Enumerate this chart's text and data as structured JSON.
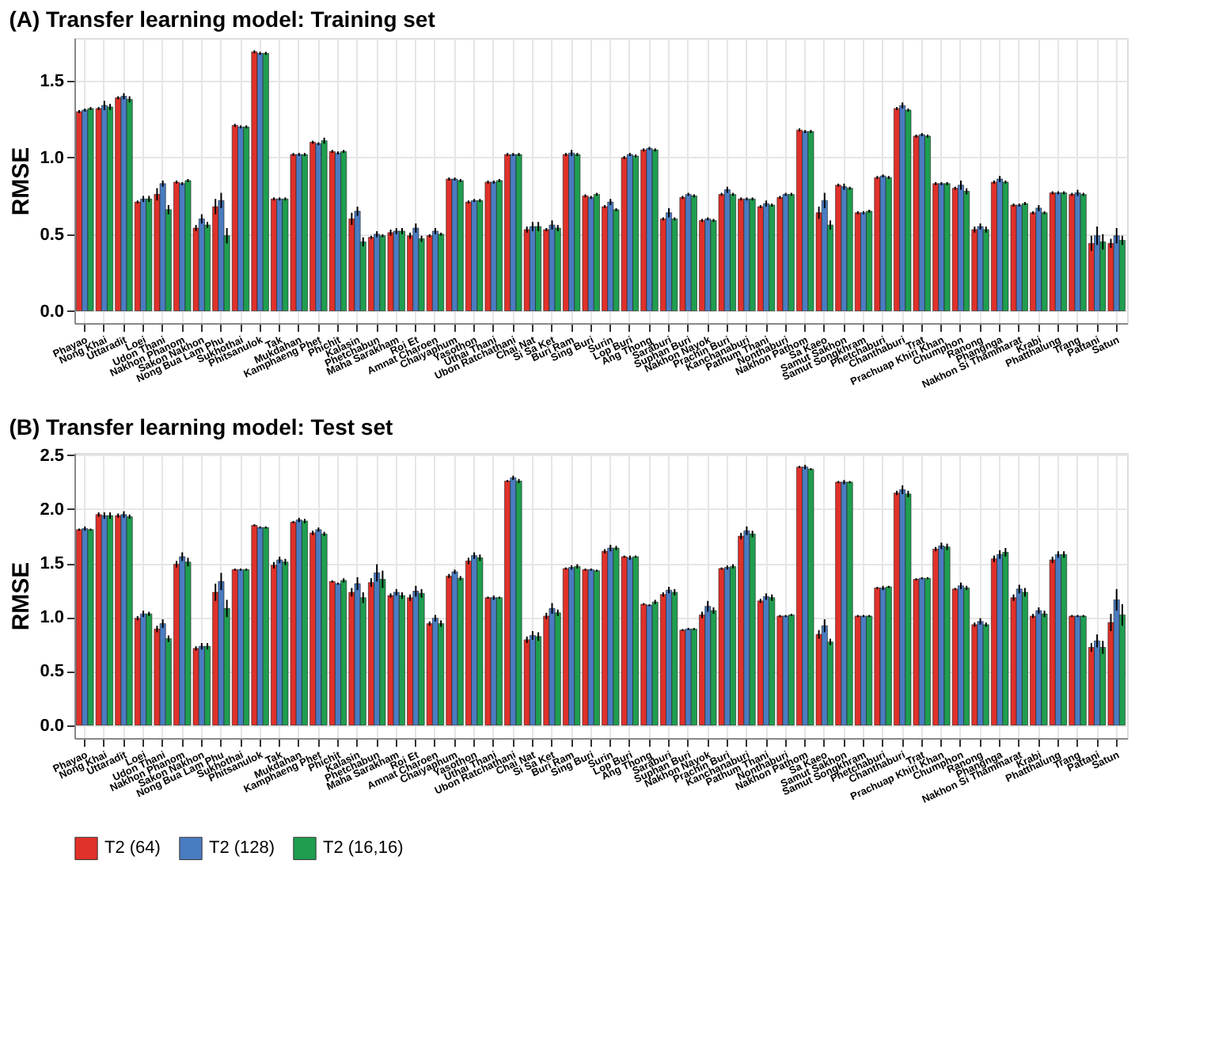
{
  "chart_data": [
    {
      "type": "bar",
      "title": "(A) Transfer learning model: Training set",
      "ylabel": "RMSE",
      "grid": true,
      "categories": [
        "Phayao",
        "Nong Khai",
        "Uttaradit",
        "Loei",
        "Udon Thani",
        "Nakhon Phanom",
        "Sakon Nakhon",
        "Nong Bua Lam Phu",
        "Sukhothai",
        "Phitsanulok",
        "Tak",
        "Mukdahan",
        "Kamphaeng Phet",
        "Phichit",
        "Kalasin",
        "Phetchabun",
        "Maha Sarakham",
        "Roi Et",
        "Amnat Charoen",
        "Chaiyaphum",
        "Yasothon",
        "Uthai Thani",
        "Ubon Ratchathani",
        "Chai Nat",
        "Si Sa Ket",
        "Buri Ram",
        "Sing Buri",
        "Surin",
        "Lop Buri",
        "Ang Thong",
        "Saraburi",
        "Suphan Buri",
        "Nakhon Nayok",
        "Prachin Buri",
        "Kanchanaburi",
        "Pathum Thani",
        "Nonthaburi",
        "Nakhon Pathom",
        "Sa Kaeo",
        "Samut Sakhon",
        "Samut Songkhram",
        "Phetchaburi",
        "Chanthaburi",
        "Trat",
        "Prachuap Khiri Khan",
        "Chumphon",
        "Ranong",
        "Phangnga",
        "Nakhon Si Thammarat",
        "Krabi",
        "Phatthalung",
        "Trang",
        "Pattani",
        "Satun"
      ],
      "ylim": [
        -0.08,
        1.78
      ],
      "yticks": [
        {
          "value": 0,
          "label": "0.0"
        },
        {
          "value": 0.5,
          "label": "0.5"
        },
        {
          "value": 1,
          "label": "1.0"
        },
        {
          "value": 1.5,
          "label": "1.5"
        }
      ],
      "series": [
        {
          "color": "#e0312a",
          "values": [
            1.3,
            1.32,
            1.39,
            0.71,
            0.76,
            0.84,
            0.54,
            0.68,
            1.21,
            1.69,
            0.73,
            1.02,
            1.1,
            1.04,
            0.6,
            0.48,
            0.51,
            0.49,
            0.49,
            0.86,
            0.71,
            0.84,
            1.02,
            0.53,
            0.53,
            1.02,
            0.75,
            0.68,
            1.0,
            1.05,
            0.6,
            0.74,
            0.59,
            0.76,
            0.73,
            0.68,
            0.74,
            1.18,
            0.64,
            0.82,
            0.64,
            0.87,
            1.32,
            1.14,
            0.83,
            0.8,
            0.53,
            0.84,
            0.69,
            0.64,
            0.77,
            0.76,
            0.44,
            0.44
          ],
          "errors": [
            0.01,
            0.01,
            0.01,
            0.01,
            0.04,
            0.01,
            0.02,
            0.05,
            0.01,
            0.01,
            0.01,
            0.01,
            0.01,
            0.01,
            0.04,
            0.01,
            0.02,
            0.02,
            0.01,
            0.01,
            0.01,
            0.01,
            0.01,
            0.02,
            0.01,
            0.01,
            0.01,
            0.01,
            0.01,
            0.01,
            0.01,
            0.01,
            0.01,
            0.01,
            0.01,
            0.01,
            0.01,
            0.01,
            0.04,
            0.01,
            0.01,
            0.01,
            0.01,
            0.01,
            0.01,
            0.01,
            0.02,
            0.01,
            0.01,
            0.01,
            0.01,
            0.01,
            0.05,
            0.03
          ]
        },
        {
          "color": "#4a7cc1",
          "values": [
            1.31,
            1.34,
            1.4,
            0.73,
            0.83,
            0.83,
            0.6,
            0.72,
            1.2,
            1.68,
            0.73,
            1.02,
            1.09,
            1.03,
            0.65,
            0.5,
            0.52,
            0.54,
            0.52,
            0.86,
            0.72,
            0.84,
            1.02,
            0.55,
            0.56,
            1.03,
            0.74,
            0.71,
            1.02,
            1.06,
            0.64,
            0.76,
            0.6,
            0.79,
            0.73,
            0.7,
            0.76,
            1.17,
            0.72,
            0.81,
            0.64,
            0.88,
            1.34,
            1.15,
            0.83,
            0.82,
            0.55,
            0.86,
            0.69,
            0.67,
            0.77,
            0.77,
            0.49,
            0.49
          ],
          "errors": [
            0.01,
            0.03,
            0.02,
            0.02,
            0.02,
            0.01,
            0.03,
            0.05,
            0.01,
            0.01,
            0.01,
            0.01,
            0.01,
            0.01,
            0.03,
            0.02,
            0.02,
            0.03,
            0.02,
            0.01,
            0.01,
            0.01,
            0.01,
            0.03,
            0.03,
            0.02,
            0.01,
            0.02,
            0.01,
            0.01,
            0.03,
            0.01,
            0.01,
            0.02,
            0.01,
            0.02,
            0.01,
            0.01,
            0.05,
            0.02,
            0.01,
            0.01,
            0.02,
            0.01,
            0.01,
            0.03,
            0.02,
            0.02,
            0.01,
            0.02,
            0.01,
            0.02,
            0.06,
            0.05
          ]
        },
        {
          "color": "#1f9e50",
          "values": [
            1.32,
            1.33,
            1.38,
            0.73,
            0.66,
            0.85,
            0.56,
            0.49,
            1.2,
            1.68,
            0.73,
            1.02,
            1.11,
            1.04,
            0.45,
            0.49,
            0.52,
            0.47,
            0.5,
            0.85,
            0.72,
            0.85,
            1.02,
            0.55,
            0.54,
            1.02,
            0.76,
            0.66,
            1.01,
            1.05,
            0.6,
            0.75,
            0.59,
            0.76,
            0.73,
            0.69,
            0.76,
            1.17,
            0.56,
            0.8,
            0.65,
            0.87,
            1.31,
            1.14,
            0.83,
            0.78,
            0.53,
            0.84,
            0.7,
            0.64,
            0.77,
            0.76,
            0.45,
            0.46
          ],
          "errors": [
            0.01,
            0.02,
            0.02,
            0.02,
            0.03,
            0.01,
            0.02,
            0.05,
            0.01,
            0.01,
            0.01,
            0.01,
            0.02,
            0.01,
            0.03,
            0.01,
            0.02,
            0.02,
            0.01,
            0.01,
            0.01,
            0.01,
            0.01,
            0.03,
            0.02,
            0.01,
            0.01,
            0.01,
            0.01,
            0.01,
            0.01,
            0.01,
            0.01,
            0.01,
            0.01,
            0.01,
            0.01,
            0.01,
            0.03,
            0.01,
            0.01,
            0.01,
            0.01,
            0.01,
            0.01,
            0.02,
            0.02,
            0.01,
            0.01,
            0.01,
            0.01,
            0.01,
            0.05,
            0.03
          ]
        }
      ]
    },
    {
      "type": "bar",
      "title": "(B) Transfer learning model: Test set",
      "ylabel": "RMSE",
      "grid": true,
      "legend": "bottom",
      "categories": [
        "Phayao",
        "Nong Khai",
        "Uttaradit",
        "Loei",
        "Udon Thani",
        "Nakhon Phanom",
        "Sakon Nakhon",
        "Nong Bua Lam Phu",
        "Sukhothai",
        "Phitsanulok",
        "Tak",
        "Mukdahan",
        "Kamphaeng Phet",
        "Phichit",
        "Kalasin",
        "Phetchabun",
        "Maha Sarakham",
        "Roi Et",
        "Amnat Charoen",
        "Chaiyaphum",
        "Yasothon",
        "Uthai Thani",
        "Ubon Ratchathani",
        "Chai Nat",
        "Si Sa Ket",
        "Buri Ram",
        "Sing Buri",
        "Surin",
        "Lop Buri",
        "Ang Thong",
        "Saraburi",
        "Suphan Buri",
        "Nakhon Nayok",
        "Prachin Buri",
        "Kanchanaburi",
        "Pathum Thani",
        "Nonthaburi",
        "Nakhon Pathom",
        "Sa Kaeo",
        "Samut Sakhon",
        "Samut Songkhram",
        "Phetchaburi",
        "Chanthaburi",
        "Trat",
        "Prachuap Khiri Khan",
        "Chumphon",
        "Ranong",
        "Phangnga",
        "Nakhon Si Thammarat",
        "Krabi",
        "Phatthalung",
        "Trang",
        "Pattani",
        "Satun"
      ],
      "ylim": [
        -0.12,
        2.52
      ],
      "yticks": [
        {
          "value": 0,
          "label": "0.0"
        },
        {
          "value": 0.5,
          "label": "0.5"
        },
        {
          "value": 1,
          "label": "1.0"
        },
        {
          "value": 1.5,
          "label": "1.5"
        },
        {
          "value": 2,
          "label": "2.0"
        },
        {
          "value": 2.5,
          "label": "2.5"
        }
      ],
      "series": [
        {
          "name": "T2 (64)",
          "color": "#e0312a",
          "values": [
            1.81,
            1.95,
            1.94,
            0.99,
            0.89,
            1.49,
            0.71,
            1.23,
            1.44,
            1.85,
            1.48,
            1.88,
            1.78,
            1.33,
            1.23,
            1.32,
            1.2,
            1.18,
            0.94,
            1.38,
            1.52,
            1.18,
            2.26,
            0.79,
            1.01,
            1.45,
            1.44,
            1.61,
            1.56,
            1.12,
            1.21,
            0.88,
            1.02,
            1.45,
            1.75,
            1.15,
            1.01,
            2.39,
            0.84,
            2.25,
            1.01,
            1.27,
            2.15,
            1.35,
            1.63,
            1.26,
            0.93,
            1.54,
            1.18,
            1.01,
            1.53,
            1.01,
            0.72,
            0.95
          ],
          "errors": [
            0.01,
            0.02,
            0.02,
            0.02,
            0.03,
            0.03,
            0.02,
            0.08,
            0.01,
            0.01,
            0.03,
            0.01,
            0.02,
            0.01,
            0.04,
            0.04,
            0.02,
            0.03,
            0.02,
            0.02,
            0.03,
            0.01,
            0.01,
            0.03,
            0.03,
            0.01,
            0.01,
            0.02,
            0.01,
            0.01,
            0.02,
            0.01,
            0.03,
            0.01,
            0.03,
            0.02,
            0.01,
            0.01,
            0.04,
            0.01,
            0.01,
            0.01,
            0.02,
            0.01,
            0.02,
            0.01,
            0.02,
            0.03,
            0.03,
            0.02,
            0.03,
            0.01,
            0.04,
            0.08
          ]
        },
        {
          "name": "T2 (128)",
          "color": "#4a7cc1",
          "values": [
            1.82,
            1.94,
            1.95,
            1.03,
            0.94,
            1.56,
            0.73,
            1.33,
            1.44,
            1.83,
            1.53,
            1.9,
            1.81,
            1.31,
            1.31,
            1.41,
            1.23,
            1.24,
            0.99,
            1.42,
            1.57,
            1.18,
            2.29,
            0.83,
            1.08,
            1.46,
            1.44,
            1.64,
            1.55,
            1.11,
            1.25,
            0.89,
            1.1,
            1.46,
            1.8,
            1.19,
            1.01,
            2.39,
            0.92,
            2.25,
            1.01,
            1.27,
            2.18,
            1.36,
            1.66,
            1.29,
            0.96,
            1.58,
            1.26,
            1.06,
            1.58,
            1.01,
            0.78,
            1.16
          ],
          "errors": [
            0.02,
            0.03,
            0.03,
            0.03,
            0.04,
            0.04,
            0.03,
            0.08,
            0.01,
            0.01,
            0.03,
            0.02,
            0.02,
            0.01,
            0.06,
            0.08,
            0.03,
            0.05,
            0.03,
            0.02,
            0.03,
            0.02,
            0.02,
            0.04,
            0.05,
            0.02,
            0.01,
            0.03,
            0.02,
            0.01,
            0.03,
            0.01,
            0.05,
            0.02,
            0.04,
            0.03,
            0.01,
            0.02,
            0.06,
            0.02,
            0.01,
            0.02,
            0.04,
            0.01,
            0.03,
            0.03,
            0.03,
            0.04,
            0.04,
            0.03,
            0.03,
            0.01,
            0.06,
            0.1
          ]
        },
        {
          "name": "T2 (16,16)",
          "color": "#1f9e50",
          "values": [
            1.81,
            1.94,
            1.93,
            1.03,
            0.8,
            1.51,
            0.73,
            1.08,
            1.44,
            1.83,
            1.51,
            1.89,
            1.77,
            1.34,
            1.18,
            1.35,
            1.2,
            1.22,
            0.94,
            1.36,
            1.55,
            1.18,
            2.26,
            0.82,
            1.04,
            1.47,
            1.43,
            1.64,
            1.56,
            1.14,
            1.23,
            0.89,
            1.06,
            1.47,
            1.77,
            1.18,
            1.02,
            2.37,
            0.77,
            2.25,
            1.01,
            1.28,
            2.14,
            1.36,
            1.65,
            1.27,
            0.93,
            1.6,
            1.23,
            1.03,
            1.58,
            1.01,
            0.72,
            1.02
          ],
          "errors": [
            0.01,
            0.03,
            0.02,
            0.02,
            0.03,
            0.04,
            0.03,
            0.08,
            0.01,
            0.01,
            0.03,
            0.02,
            0.02,
            0.02,
            0.05,
            0.08,
            0.03,
            0.04,
            0.03,
            0.02,
            0.03,
            0.01,
            0.02,
            0.04,
            0.03,
            0.02,
            0.01,
            0.02,
            0.01,
            0.02,
            0.03,
            0.01,
            0.03,
            0.02,
            0.03,
            0.03,
            0.01,
            0.01,
            0.03,
            0.01,
            0.01,
            0.01,
            0.03,
            0.01,
            0.03,
            0.02,
            0.02,
            0.04,
            0.04,
            0.03,
            0.03,
            0.01,
            0.06,
            0.1
          ]
        }
      ]
    }
  ]
}
